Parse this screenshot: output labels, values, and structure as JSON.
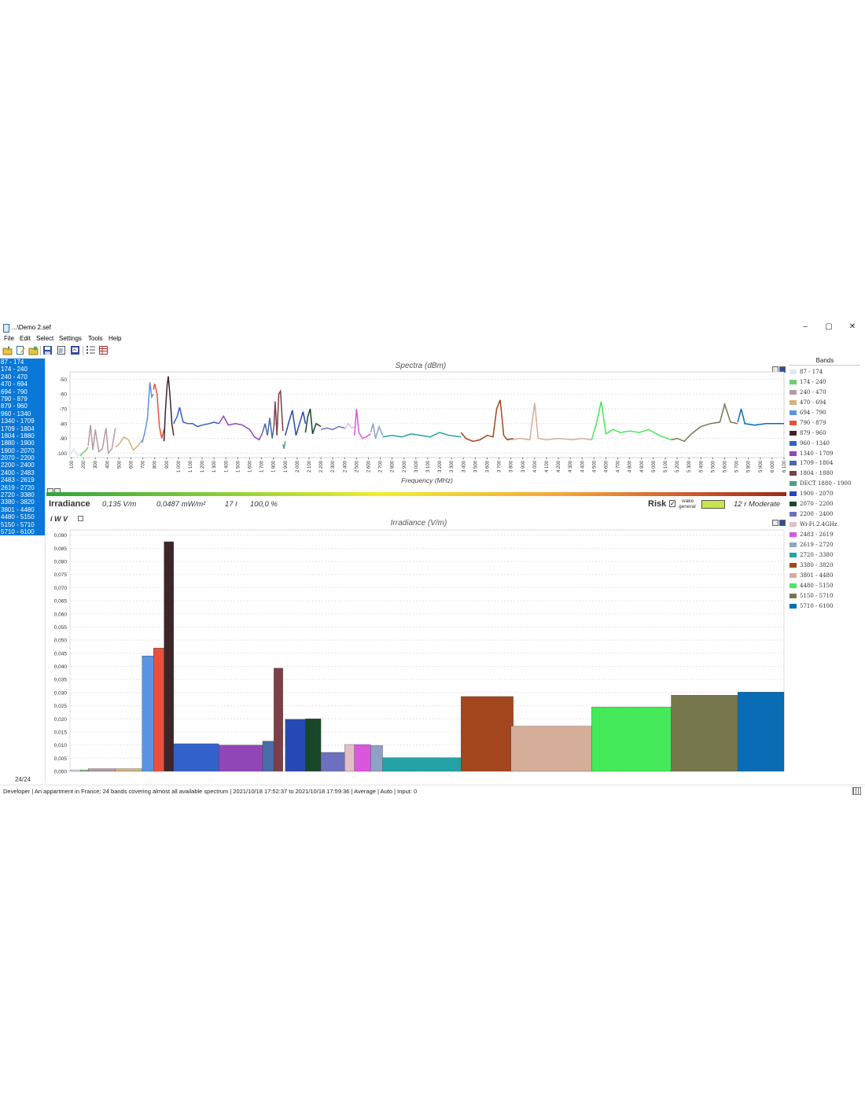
{
  "window": {
    "title": "...\\Demo 2.sef",
    "minimize": "–",
    "maximize": "▢",
    "close": "✕"
  },
  "menu": [
    "File",
    "Edit",
    "Select",
    "Settings",
    "Tools",
    "Help"
  ],
  "bands": [
    {
      "label": "87 - 174",
      "legend": "87 - 174",
      "color": "#dce9f5",
      "irr": 0.0005
    },
    {
      "label": "174 - 240",
      "legend": "174 - 240",
      "color": "#6fcf6f",
      "irr": 0.0005
    },
    {
      "label": "240 - 470",
      "legend": "240 - 470",
      "color": "#b59aa6",
      "irr": 0.001
    },
    {
      "label": "470 - 694",
      "legend": "470 - 694",
      "color": "#d8b27c",
      "irr": 0.001
    },
    {
      "label": "694 - 790",
      "legend": "694 - 790",
      "color": "#5a93e2",
      "irr": 0.044
    },
    {
      "label": "790 - 879",
      "legend": "790 - 879",
      "color": "#e8513f",
      "irr": 0.047
    },
    {
      "label": "879 - 960",
      "legend": "879 - 960",
      "color": "#3e2628",
      "irr": 0.0875
    },
    {
      "label": "960 - 1340",
      "legend": "960 - 1340",
      "color": "#3261c9",
      "irr": 0.0105
    },
    {
      "label": "1340 - 1709",
      "legend": "1340 - 1709",
      "color": "#9146b8",
      "irr": 0.01
    },
    {
      "label": "1709 - 1804",
      "legend": "1709 - 1804",
      "color": "#476ca6",
      "irr": 0.0115
    },
    {
      "label": "1804 - 1880",
      "legend": "1804 - 1880",
      "color": "#7d3f48",
      "irr": 0.0393
    },
    {
      "label": "1880 - 1900",
      "legend": "DECT 1880 - 1900",
      "color": "#4f9d87",
      "irr": 0.0
    },
    {
      "label": "1900 - 2070",
      "legend": "1900 - 2070",
      "color": "#2749b6",
      "irr": 0.0198
    },
    {
      "label": "2070 - 2200",
      "legend": "2070 - 2200",
      "color": "#19472a",
      "irr": 0.02
    },
    {
      "label": "2200 - 2400",
      "legend": "2200 - 2400",
      "color": "#6d70bf",
      "irr": 0.0072
    },
    {
      "label": "2400 - 2483",
      "legend": "Wi-Fi 2.4GHz",
      "color": "#e3bfc6",
      "irr": 0.0102
    },
    {
      "label": "2483 - 2619",
      "legend": "2483 - 2619",
      "color": "#da56df",
      "irr": 0.0102
    },
    {
      "label": "2619 - 2720",
      "legend": "2619 - 2720",
      "color": "#8ea2c5",
      "irr": 0.0098
    },
    {
      "label": "2720 - 3380",
      "legend": "2720 - 3380",
      "color": "#25a2a5",
      "irr": 0.0052
    },
    {
      "label": "3380 - 3820",
      "legend": "3380 - 3820",
      "color": "#a3461e",
      "irr": 0.0285
    },
    {
      "label": "3801 - 4480",
      "legend": "3801 - 4480",
      "color": "#d5ad98",
      "irr": 0.0172
    },
    {
      "label": "4480 - 5150",
      "legend": "4480 - 5150",
      "color": "#44ea59",
      "irr": 0.0245
    },
    {
      "label": "5150 - 5710",
      "legend": "5150 - 5710",
      "color": "#77774d",
      "irr": 0.029
    },
    {
      "label": "5710 - 6100",
      "legend": "5710 - 6100",
      "color": "#0a6cb5",
      "irr": 0.0302
    }
  ],
  "selection_count": "24/24",
  "spectra": {
    "title": "Spectra (dBm)",
    "xlabel": "Frequency (MHz)",
    "yticks": [
      -50,
      -60,
      -70,
      -80,
      -90,
      -100
    ],
    "xticks": [
      "100",
      "200",
      "300",
      "400",
      "500",
      "600",
      "700",
      "800",
      "900",
      "1 000",
      "1 100",
      "1 200",
      "1 300",
      "1 400",
      "1 500",
      "1 600",
      "1 700",
      "1 800",
      "1 900",
      "2 000",
      "2 100",
      "2 200",
      "2 300",
      "2 400",
      "2 500",
      "2 600",
      "2 700",
      "2 800",
      "2 900",
      "3 000",
      "3 100",
      "3 200",
      "3 300",
      "3 400",
      "3 500",
      "3 600",
      "3 700",
      "3 800",
      "3 900",
      "4 000",
      "4 100",
      "4 200",
      "4 300",
      "4 400",
      "4 500",
      "4 600",
      "4 700",
      "4 800",
      "4 900",
      "5 000",
      "5 100",
      "5 200",
      "5 300",
      "5 400",
      "5 500",
      "5 600",
      "5 700",
      "5 800",
      "5 900",
      "6 000",
      "6 100"
    ],
    "xlim": [
      87,
      6100
    ],
    "ylim": [
      -103,
      -45
    ],
    "series": [
      {
        "band": "87 - 174",
        "points": [
          [
            90,
            -101
          ],
          [
            120,
            -97
          ],
          [
            150,
            -102
          ],
          [
            174,
            -100
          ]
        ]
      },
      {
        "band": "174 - 240",
        "points": [
          [
            174,
            -102
          ],
          [
            190,
            -100
          ],
          [
            210,
            -99
          ],
          [
            240,
            -96
          ]
        ]
      },
      {
        "band": "240 - 470",
        "points": [
          [
            240,
            -95
          ],
          [
            260,
            -81
          ],
          [
            280,
            -98
          ],
          [
            300,
            -84
          ],
          [
            330,
            -99
          ],
          [
            360,
            -97
          ],
          [
            390,
            -83
          ],
          [
            410,
            -100
          ],
          [
            440,
            -97
          ],
          [
            470,
            -83
          ]
        ]
      },
      {
        "band": "470 - 694",
        "points": [
          [
            470,
            -96
          ],
          [
            500,
            -94
          ],
          [
            540,
            -89
          ],
          [
            580,
            -91
          ],
          [
            620,
            -98
          ],
          [
            660,
            -95
          ],
          [
            694,
            -91
          ]
        ]
      },
      {
        "band": "694 - 790",
        "points": [
          [
            694,
            -93
          ],
          [
            720,
            -85
          ],
          [
            740,
            -76
          ],
          [
            760,
            -52
          ],
          [
            775,
            -62
          ],
          [
            790,
            -60
          ]
        ]
      },
      {
        "band": "790 - 879",
        "points": [
          [
            790,
            -57
          ],
          [
            800,
            -53
          ],
          [
            820,
            -60
          ],
          [
            840,
            -82
          ],
          [
            860,
            -90
          ],
          [
            879,
            -84
          ]
        ]
      },
      {
        "band": "879 - 960",
        "points": [
          [
            879,
            -92
          ],
          [
            890,
            -72
          ],
          [
            905,
            -54
          ],
          [
            915,
            -48
          ],
          [
            930,
            -62
          ],
          [
            945,
            -80
          ],
          [
            960,
            -88
          ]
        ]
      },
      {
        "band": "960 - 1340",
        "points": [
          [
            960,
            -80
          ],
          [
            990,
            -75
          ],
          [
            1010,
            -69
          ],
          [
            1040,
            -79
          ],
          [
            1080,
            -80
          ],
          [
            1120,
            -80
          ],
          [
            1160,
            -82
          ],
          [
            1200,
            -81
          ],
          [
            1260,
            -80
          ],
          [
            1300,
            -79
          ],
          [
            1340,
            -80
          ]
        ]
      },
      {
        "band": "1340 - 1709",
        "points": [
          [
            1340,
            -80
          ],
          [
            1380,
            -75
          ],
          [
            1420,
            -81
          ],
          [
            1480,
            -80
          ],
          [
            1540,
            -81
          ],
          [
            1600,
            -84
          ],
          [
            1640,
            -89
          ],
          [
            1680,
            -91
          ],
          [
            1709,
            -86
          ]
        ]
      },
      {
        "band": "1709 - 1804",
        "points": [
          [
            1709,
            -86
          ],
          [
            1730,
            -80
          ],
          [
            1750,
            -88
          ],
          [
            1770,
            -76
          ],
          [
            1790,
            -90
          ],
          [
            1804,
            -82
          ]
        ]
      },
      {
        "band": "1804 - 1880",
        "points": [
          [
            1804,
            -82
          ],
          [
            1815,
            -65
          ],
          [
            1830,
            -88
          ],
          [
            1845,
            -60
          ],
          [
            1860,
            -58
          ],
          [
            1880,
            -85
          ]
        ]
      },
      {
        "band": "1880 - 1900",
        "points": [
          [
            1880,
            -94
          ],
          [
            1890,
            -97
          ],
          [
            1900,
            -92
          ]
        ]
      },
      {
        "band": "1900 - 2070",
        "points": [
          [
            1900,
            -88
          ],
          [
            1930,
            -79
          ],
          [
            1960,
            -71
          ],
          [
            1990,
            -88
          ],
          [
            2020,
            -80
          ],
          [
            2050,
            -72
          ],
          [
            2070,
            -80
          ]
        ]
      },
      {
        "band": "2070 - 2200",
        "points": [
          [
            2070,
            -86
          ],
          [
            2090,
            -75
          ],
          [
            2110,
            -70
          ],
          [
            2130,
            -87
          ],
          [
            2160,
            -80
          ],
          [
            2200,
            -82
          ]
        ]
      },
      {
        "band": "2200 - 2400",
        "points": [
          [
            2200,
            -84
          ],
          [
            2250,
            -83
          ],
          [
            2300,
            -84
          ],
          [
            2350,
            -82
          ],
          [
            2400,
            -83
          ]
        ]
      },
      {
        "band": "2400 - 2483",
        "points": [
          [
            2400,
            -84
          ],
          [
            2430,
            -80
          ],
          [
            2460,
            -83
          ],
          [
            2483,
            -82
          ]
        ]
      },
      {
        "band": "2483 - 2619",
        "points": [
          [
            2483,
            -88
          ],
          [
            2500,
            -70
          ],
          [
            2520,
            -86
          ],
          [
            2550,
            -90
          ],
          [
            2580,
            -89
          ],
          [
            2619,
            -87
          ]
        ]
      },
      {
        "band": "2619 - 2720",
        "points": [
          [
            2619,
            -86
          ],
          [
            2640,
            -80
          ],
          [
            2660,
            -90
          ],
          [
            2690,
            -82
          ],
          [
            2720,
            -88
          ]
        ]
      },
      {
        "band": "2720 - 3380",
        "points": [
          [
            2720,
            -89
          ],
          [
            2800,
            -88
          ],
          [
            2880,
            -89
          ],
          [
            2960,
            -87
          ],
          [
            3040,
            -88
          ],
          [
            3120,
            -89
          ],
          [
            3200,
            -86
          ],
          [
            3280,
            -88
          ],
          [
            3380,
            -89
          ]
        ]
      },
      {
        "band": "3380 - 3820",
        "points": [
          [
            3380,
            -86
          ],
          [
            3420,
            -90
          ],
          [
            3480,
            -92
          ],
          [
            3540,
            -91
          ],
          [
            3600,
            -88
          ],
          [
            3650,
            -89
          ],
          [
            3680,
            -70
          ],
          [
            3710,
            -64
          ],
          [
            3740,
            -88
          ],
          [
            3770,
            -91
          ],
          [
            3820,
            -90
          ]
        ]
      },
      {
        "band": "3801 - 4480",
        "points": [
          [
            3801,
            -91
          ],
          [
            3880,
            -90
          ],
          [
            3960,
            -91
          ],
          [
            4000,
            -66
          ],
          [
            4030,
            -90
          ],
          [
            4100,
            -91
          ],
          [
            4200,
            -90
          ],
          [
            4320,
            -91
          ],
          [
            4400,
            -90
          ],
          [
            4480,
            -91
          ]
        ]
      },
      {
        "band": "4480 - 5150",
        "points": [
          [
            4480,
            -91
          ],
          [
            4520,
            -80
          ],
          [
            4560,
            -65
          ],
          [
            4600,
            -87
          ],
          [
            4660,
            -84
          ],
          [
            4720,
            -86
          ],
          [
            4800,
            -85
          ],
          [
            4880,
            -86
          ],
          [
            4960,
            -84
          ],
          [
            5050,
            -88
          ],
          [
            5150,
            -91
          ]
        ]
      },
      {
        "band": "5150 - 5710",
        "points": [
          [
            5150,
            -91
          ],
          [
            5200,
            -90
          ],
          [
            5260,
            -92
          ],
          [
            5320,
            -87
          ],
          [
            5400,
            -82
          ],
          [
            5480,
            -80
          ],
          [
            5560,
            -79
          ],
          [
            5600,
            -67
          ],
          [
            5650,
            -79
          ],
          [
            5710,
            -80
          ]
        ]
      },
      {
        "band": "5710 - 6100",
        "points": [
          [
            5710,
            -79
          ],
          [
            5740,
            -70
          ],
          [
            5770,
            -80
          ],
          [
            5850,
            -81
          ],
          [
            5950,
            -80
          ],
          [
            6040,
            -80
          ],
          [
            6100,
            -80
          ]
        ]
      }
    ]
  },
  "info": {
    "irradiance_label": "Irradiance",
    "field": "0,135 V/m",
    "power": "0,0487 mW/m²",
    "count": "17 l",
    "percent": "100,0 %",
    "risk_label": "Risk",
    "risk_check": "✓",
    "risk_sub1": "wake",
    "risk_sub2": "general",
    "risk_value": "12 r Moderate",
    "risk_color": "#c9e54c",
    "iwv": "i W V"
  },
  "irradiance_chart": {
    "title": "Irradiance (V/m)",
    "yticks": [
      "0,090",
      "0,085",
      "0,080",
      "0,075",
      "0,070",
      "0,065",
      "0,060",
      "0,055",
      "0,050",
      "0,045",
      "0,040",
      "0,035",
      "0,030",
      "0,025",
      "0,020",
      "0,015",
      "0,010",
      "0,005",
      "0,000"
    ],
    "ylim": [
      0,
      0.092
    ]
  },
  "legend_title": "Bands",
  "status": "Developer | An appartment in France; 24 bands covering almost all available spectrum | 2021/10/18 17:52:37 to 2021/10/18 17:59:36 | Average | Auto | Input: 0",
  "chart_data": [
    {
      "type": "line",
      "title": "Spectra (dBm)",
      "xlabel": "Frequency (MHz)",
      "ylabel": "",
      "xlim": [
        87,
        6100
      ],
      "ylim": [
        -103,
        -45
      ],
      "note_series": "see spectra.series"
    },
    {
      "type": "bar",
      "title": "Irradiance (V/m)",
      "categories": [
        "87 - 174",
        "174 - 240",
        "240 - 470",
        "470 - 694",
        "694 - 790",
        "790 - 879",
        "879 - 960",
        "960 - 1340",
        "1340 - 1709",
        "1709 - 1804",
        "1804 - 1880",
        "1880 - 1900",
        "1900 - 2070",
        "2070 - 2200",
        "2200 - 2400",
        "2400 - 2483",
        "2483 - 2619",
        "2619 - 2720",
        "2720 - 3380",
        "3380 - 3820",
        "3801 - 4480",
        "4480 - 5150",
        "5150 - 5710",
        "5710 - 6100"
      ],
      "values": [
        0.0005,
        0.0005,
        0.001,
        0.001,
        0.044,
        0.047,
        0.0875,
        0.0105,
        0.01,
        0.0115,
        0.0393,
        0.0,
        0.0198,
        0.02,
        0.0072,
        0.0102,
        0.0102,
        0.0098,
        0.0052,
        0.0285,
        0.0172,
        0.0245,
        0.029,
        0.0302
      ],
      "ylim": [
        0,
        0.092
      ]
    }
  ]
}
